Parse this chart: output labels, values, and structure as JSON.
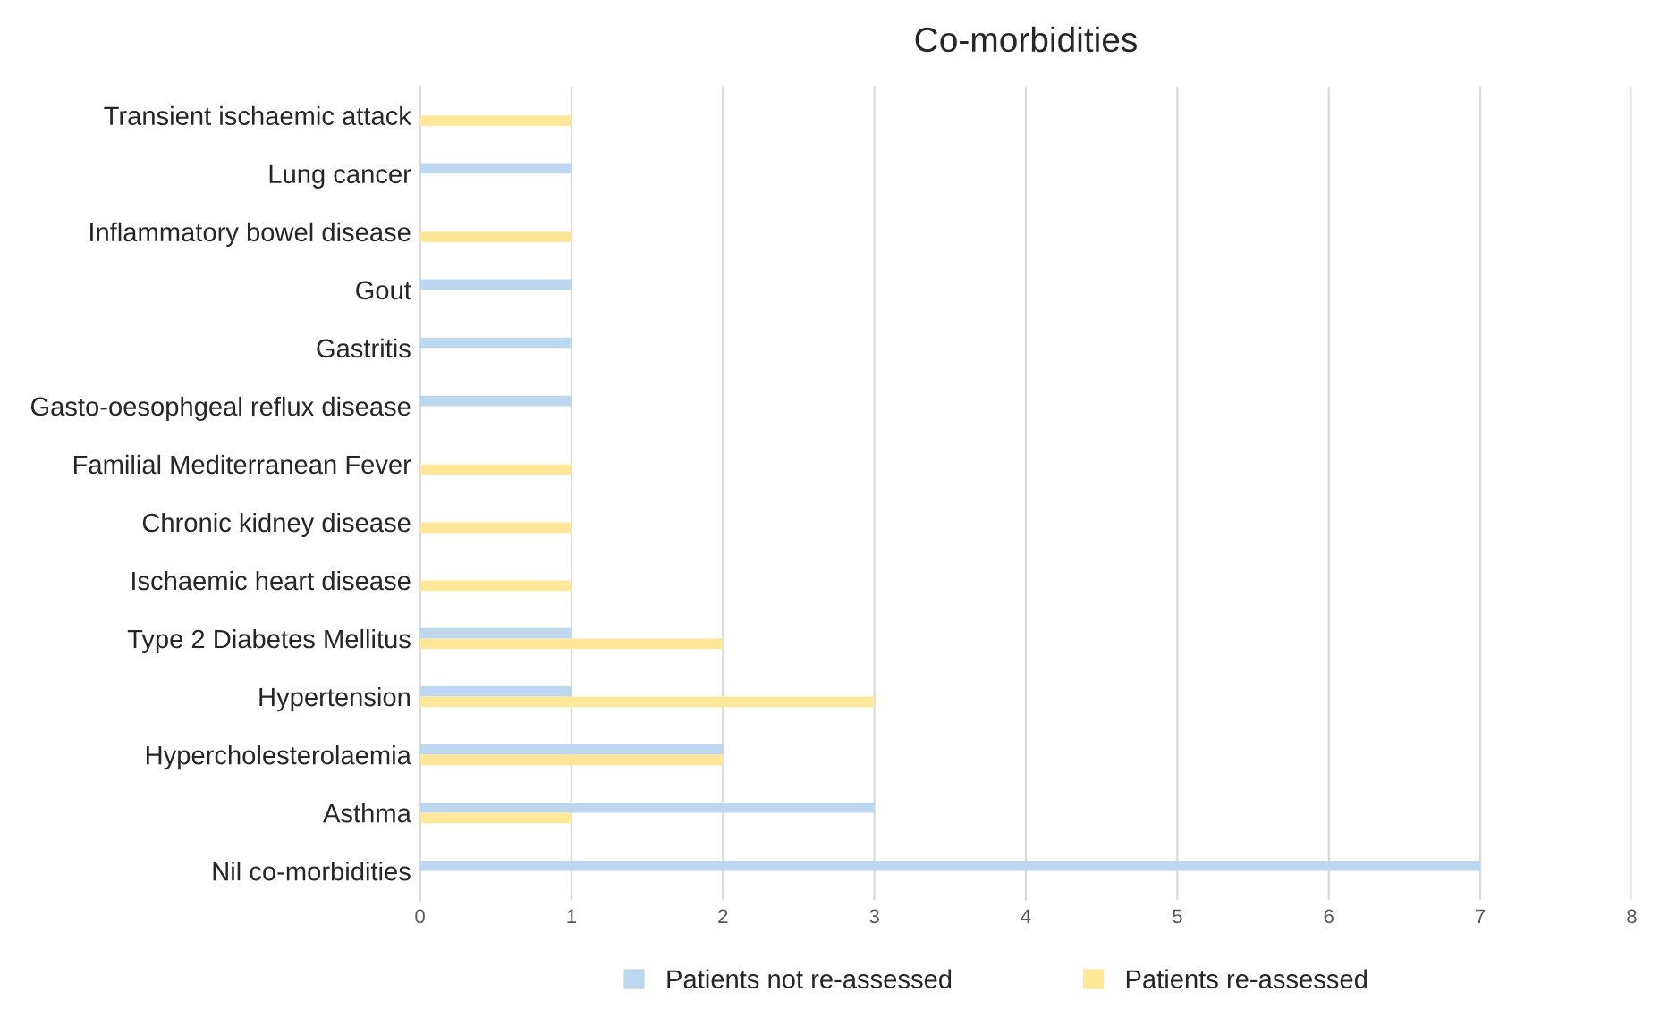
{
  "chart_data": {
    "type": "bar",
    "orientation": "horizontal",
    "title": "Co-morbidities",
    "categories": [
      "Transient ischaemic attack",
      "Lung cancer",
      "Inflammatory bowel disease",
      "Gout",
      "Gastritis",
      "Gasto-oesophgeal reflux disease",
      "Familial Mediterranean Fever",
      "Chronic kidney disease",
      "Ischaemic heart disease",
      "Type 2 Diabetes Mellitus",
      "Hypertension",
      "Hypercholesterolaemia",
      "Asthma",
      "Nil co-morbidities"
    ],
    "series": [
      {
        "name": "Patients not re-assessed",
        "color": "#bdd7ee",
        "values": [
          null,
          1,
          null,
          1,
          1,
          1,
          null,
          null,
          null,
          1,
          1,
          2,
          3,
          7
        ]
      },
      {
        "name": "Patients re-assessed",
        "color": "#ffe699",
        "values": [
          1,
          null,
          1,
          null,
          null,
          null,
          1,
          1,
          1,
          2,
          3,
          2,
          1,
          null
        ]
      }
    ],
    "xlim": [
      0,
      8
    ],
    "xticks": [
      0,
      1,
      2,
      3,
      4,
      5,
      6,
      7,
      8
    ],
    "grid": "x",
    "legend": "bottom"
  }
}
